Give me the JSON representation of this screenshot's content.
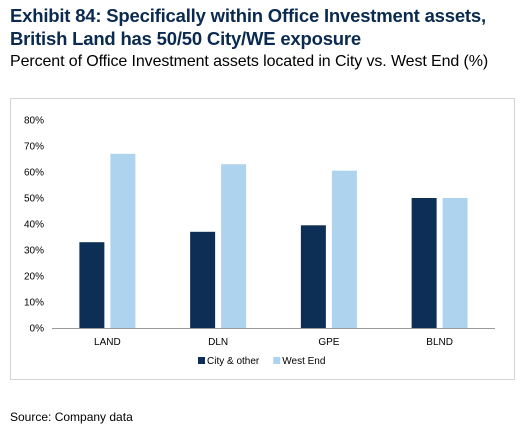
{
  "title": "Exhibit 84: Specifically within Office Investment assets, British Land has 50/50 City/WE exposure",
  "subtitle": "Percent of Office Investment assets located in City vs. West End (%)",
  "source": "Source: Company data",
  "chart_data": {
    "type": "bar",
    "categories": [
      "LAND",
      "DLN",
      "GPE",
      "BLND"
    ],
    "series": [
      {
        "name": "City & other",
        "values": [
          33,
          37,
          39.5,
          50
        ],
        "color": "#0d2f55"
      },
      {
        "name": "West End",
        "values": [
          67,
          63,
          60.5,
          50
        ],
        "color": "#aed3ee"
      }
    ],
    "ylim": [
      0,
      80
    ],
    "yticks": [
      0,
      10,
      20,
      30,
      40,
      50,
      60,
      70,
      80
    ],
    "ytick_labels": [
      "0%",
      "10%",
      "20%",
      "30%",
      "40%",
      "50%",
      "60%",
      "70%",
      "80%"
    ],
    "grid": false,
    "legend": "bottom-center"
  }
}
